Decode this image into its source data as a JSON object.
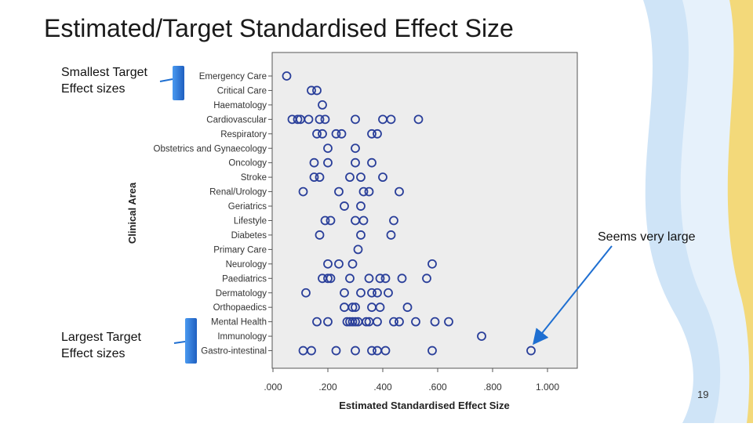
{
  "slide": {
    "title": "Estimated/Target Standardised Effect Size",
    "page_number": "19",
    "callouts": {
      "smallest": [
        "Smallest Target",
        "Effect sizes"
      ],
      "largest": [
        "Largest Target",
        "Effect sizes"
      ],
      "large_outlier": "Seems very large"
    },
    "colors": {
      "accent_blue": "#1f6fd1",
      "wave_gold": "#f3d97a",
      "wave_blue": "#cfe4f7",
      "marker": "#2a3f9a",
      "plot_bg": "#ededed"
    }
  },
  "chart_data": {
    "type": "scatter",
    "xlabel": "Estimated Standardised Effect Size",
    "ylabel": "Clinical Area",
    "xlim": [
      0,
      1
    ],
    "x_ticks": [
      ".000",
      ".200",
      ".400",
      ".600",
      ".800",
      "1.000"
    ],
    "x_tick_values": [
      0,
      0.2,
      0.4,
      0.6,
      0.8,
      1.0
    ],
    "grid": false,
    "categories": [
      "Emergency Care",
      "Critical Care",
      "Haematology",
      "Cardiovascular",
      "Respiratory",
      "Obstetrics and Gynaecology",
      "Oncology",
      "Stroke",
      "Renal/Urology",
      "Geriatrics",
      "Lifestyle",
      "Diabetes",
      "Primary Care",
      "Neurology",
      "Paediatrics",
      "Dermatology",
      "Orthopaedics",
      "Mental Health",
      "Immunology",
      "Gastro-intestinal"
    ],
    "points": [
      {
        "category": "Emergency Care",
        "values": [
          0.05
        ]
      },
      {
        "category": "Critical Care",
        "values": [
          0.14,
          0.16
        ]
      },
      {
        "category": "Haematology",
        "values": [
          0.18
        ]
      },
      {
        "category": "Cardiovascular",
        "values": [
          0.07,
          0.09,
          0.1,
          0.13,
          0.17,
          0.19,
          0.3,
          0.4,
          0.43,
          0.53
        ]
      },
      {
        "category": "Respiratory",
        "values": [
          0.16,
          0.18,
          0.23,
          0.25,
          0.36,
          0.38
        ]
      },
      {
        "category": "Obstetrics and Gynaecology",
        "values": [
          0.2,
          0.3
        ]
      },
      {
        "category": "Oncology",
        "values": [
          0.15,
          0.2,
          0.3,
          0.36
        ]
      },
      {
        "category": "Stroke",
        "values": [
          0.15,
          0.17,
          0.28,
          0.32,
          0.4
        ]
      },
      {
        "category": "Renal/Urology",
        "values": [
          0.11,
          0.24,
          0.33,
          0.35,
          0.46
        ]
      },
      {
        "category": "Geriatrics",
        "values": [
          0.26,
          0.32
        ]
      },
      {
        "category": "Lifestyle",
        "values": [
          0.19,
          0.21,
          0.3,
          0.33,
          0.44
        ]
      },
      {
        "category": "Diabetes",
        "values": [
          0.17,
          0.32,
          0.43
        ]
      },
      {
        "category": "Primary Care",
        "values": [
          0.31
        ]
      },
      {
        "category": "Neurology",
        "values": [
          0.2,
          0.24,
          0.29,
          0.58
        ]
      },
      {
        "category": "Paediatrics",
        "values": [
          0.18,
          0.2,
          0.21,
          0.28,
          0.35,
          0.39,
          0.41,
          0.47,
          0.56
        ]
      },
      {
        "category": "Dermatology",
        "values": [
          0.12,
          0.26,
          0.32,
          0.36,
          0.38,
          0.42
        ]
      },
      {
        "category": "Orthopaedics",
        "values": [
          0.26,
          0.29,
          0.3,
          0.36,
          0.39,
          0.49
        ]
      },
      {
        "category": "Mental Health",
        "values": [
          0.16,
          0.2,
          0.27,
          0.28,
          0.29,
          0.3,
          0.31,
          0.34,
          0.35,
          0.38,
          0.44,
          0.46,
          0.52,
          0.59,
          0.64
        ]
      },
      {
        "category": "Immunology",
        "values": [
          0.76
        ]
      },
      {
        "category": "Gastro-intestinal",
        "values": [
          0.11,
          0.14,
          0.23,
          0.3,
          0.36,
          0.38,
          0.41,
          0.58,
          0.94
        ]
      }
    ]
  }
}
